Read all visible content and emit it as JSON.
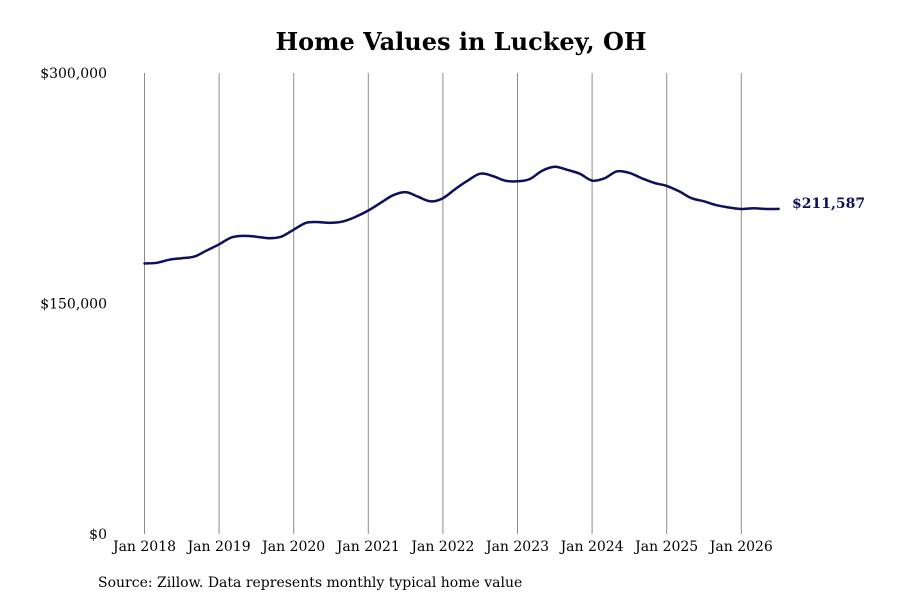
{
  "chart_data": {
    "type": "line",
    "title": "Home Values in Luckey, OH",
    "xlabel": "",
    "ylabel": "",
    "ylim": [
      0,
      300000
    ],
    "y_ticks": [
      {
        "value": 0,
        "label": "$0"
      },
      {
        "value": 150000,
        "label": "$150,000"
      },
      {
        "value": 300000,
        "label": "$300,000"
      }
    ],
    "x_ticks": [
      "Jan 2018",
      "Jan 2019",
      "Jan 2020",
      "Jan 2021",
      "Jan 2022",
      "Jan 2023",
      "Jan 2024",
      "Jan 2025",
      "Jan 2026"
    ],
    "xlim": [
      "2018-01",
      "2026-07"
    ],
    "grid": {
      "vertical": true,
      "horizontal": false
    },
    "series": [
      {
        "color": "#0f0f5e",
        "points": [
          [
            "2018-01",
            176000
          ],
          [
            "2018-03",
            176500
          ],
          [
            "2018-05",
            178500
          ],
          [
            "2018-07",
            179500
          ],
          [
            "2018-09",
            180500
          ],
          [
            "2018-11",
            184500
          ],
          [
            "2019-01",
            188500
          ],
          [
            "2019-03",
            193000
          ],
          [
            "2019-05",
            194000
          ],
          [
            "2019-07",
            193500
          ],
          [
            "2019-09",
            192500
          ],
          [
            "2019-11",
            193500
          ],
          [
            "2020-01",
            198000
          ],
          [
            "2020-03",
            202500
          ],
          [
            "2020-05",
            203000
          ],
          [
            "2020-07",
            202500
          ],
          [
            "2020-09",
            203500
          ],
          [
            "2020-11",
            206500
          ],
          [
            "2021-01",
            210500
          ],
          [
            "2021-03",
            215500
          ],
          [
            "2021-05",
            220500
          ],
          [
            "2021-07",
            222500
          ],
          [
            "2021-09",
            219500
          ],
          [
            "2021-11",
            216500
          ],
          [
            "2022-01",
            218500
          ],
          [
            "2022-03",
            224500
          ],
          [
            "2022-05",
            230000
          ],
          [
            "2022-07",
            234500
          ],
          [
            "2022-09",
            233000
          ],
          [
            "2022-11",
            230000
          ],
          [
            "2023-01",
            229500
          ],
          [
            "2023-03",
            231000
          ],
          [
            "2023-05",
            236500
          ],
          [
            "2023-07",
            239000
          ],
          [
            "2023-09",
            237000
          ],
          [
            "2023-11",
            234500
          ],
          [
            "2024-01",
            230000
          ],
          [
            "2024-03",
            231500
          ],
          [
            "2024-05",
            236000
          ],
          [
            "2024-07",
            235000
          ],
          [
            "2024-09",
            231500
          ],
          [
            "2024-11",
            228500
          ],
          [
            "2025-01",
            226500
          ],
          [
            "2025-03",
            223000
          ],
          [
            "2025-05",
            218500
          ],
          [
            "2025-07",
            216500
          ],
          [
            "2025-09",
            214000
          ],
          [
            "2025-11",
            212500
          ],
          [
            "2026-01",
            211500
          ],
          [
            "2026-03",
            212000
          ],
          [
            "2026-05",
            211500
          ],
          [
            "2026-07",
            211587
          ]
        ]
      }
    ],
    "end_label": "$211,587",
    "source": "Source: Zillow. Data represents monthly typical home value"
  }
}
